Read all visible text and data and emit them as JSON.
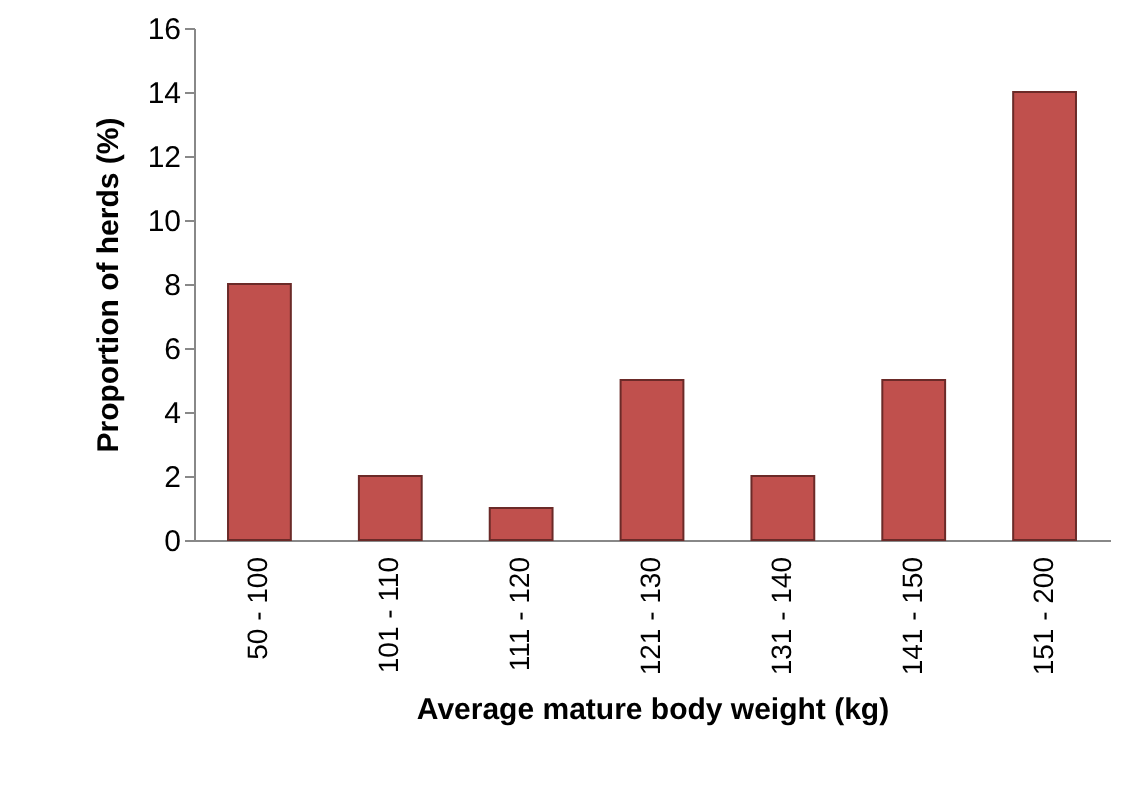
{
  "chart_data": {
    "type": "bar",
    "xlabel": "Average mature body weight (kg)",
    "ylabel": "Proportion of herds (%)",
    "categories": [
      "50 - 100",
      "101 - 110",
      "111 - 120",
      "121 - 130",
      "131 - 140",
      "141 - 150",
      "151 - 200"
    ],
    "values": [
      8,
      2,
      1,
      5,
      2,
      5,
      14
    ],
    "color": "#c0504d",
    "ylim": [
      0,
      16
    ],
    "yticks": [
      0,
      2,
      4,
      6,
      8,
      10,
      12,
      14,
      16
    ],
    "grid": false
  }
}
